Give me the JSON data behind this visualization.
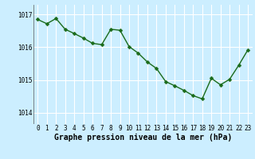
{
  "x": [
    0,
    1,
    2,
    3,
    4,
    5,
    6,
    7,
    8,
    9,
    10,
    11,
    12,
    13,
    14,
    15,
    16,
    17,
    18,
    19,
    20,
    21,
    22,
    23
  ],
  "y": [
    1016.85,
    1016.72,
    1016.88,
    1016.55,
    1016.42,
    1016.28,
    1016.12,
    1016.08,
    1016.55,
    1016.52,
    1016.02,
    1015.82,
    1015.55,
    1015.35,
    1014.95,
    1014.82,
    1014.68,
    1014.52,
    1014.42,
    1015.05,
    1014.85,
    1015.02,
    1015.45,
    1015.92
  ],
  "line_color": "#1a6b1a",
  "marker_color": "#1a6b1a",
  "bg_color": "#cceeff",
  "grid_color": "#ffffff",
  "xlabel": "Graphe pression niveau de la mer (hPa)",
  "yticks": [
    1014,
    1015,
    1016,
    1017
  ],
  "xticks": [
    0,
    1,
    2,
    3,
    4,
    5,
    6,
    7,
    8,
    9,
    10,
    11,
    12,
    13,
    14,
    15,
    16,
    17,
    18,
    19,
    20,
    21,
    22,
    23
  ],
  "ylim": [
    1013.65,
    1017.3
  ],
  "xlim": [
    -0.5,
    23.5
  ],
  "tick_fontsize": 5.5,
  "xlabel_fontsize": 7,
  "marker_size": 2.5,
  "linewidth": 1.0
}
